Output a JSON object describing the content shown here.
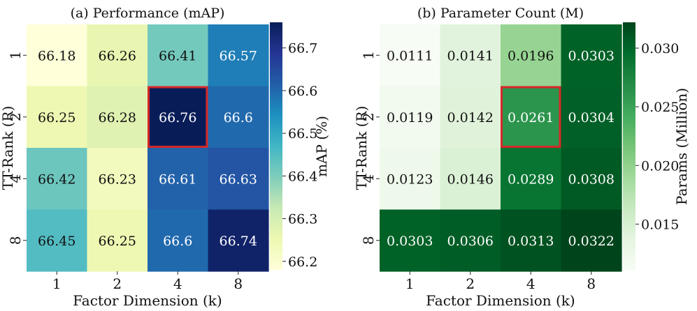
{
  "chart_data": [
    {
      "type": "heatmap",
      "title": "(a) Performance (mAP)",
      "xlabel": "Factor Dimension (k)",
      "ylabel": "TT-Rank (R)",
      "x_categories": [
        "1",
        "2",
        "4",
        "8"
      ],
      "y_categories": [
        "1",
        "2",
        "4",
        "8"
      ],
      "values": [
        [
          66.18,
          66.26,
          66.41,
          66.57
        ],
        [
          66.25,
          66.28,
          66.76,
          66.6
        ],
        [
          66.42,
          66.23,
          66.61,
          66.63
        ],
        [
          66.45,
          66.25,
          66.6,
          66.74
        ]
      ],
      "cell_labels": [
        [
          "66.18",
          "66.26",
          "66.41",
          "66.57"
        ],
        [
          "66.25",
          "66.28",
          "66.76",
          "66.6"
        ],
        [
          "66.42",
          "66.23",
          "66.61",
          "66.63"
        ],
        [
          "66.45",
          "66.25",
          "66.6",
          "66.74"
        ]
      ],
      "highlight": {
        "row": 1,
        "col": 2,
        "color": "#d62728"
      },
      "colormap": "YlGnBu",
      "colorbar": {
        "label": "mAP (%)",
        "range": [
          66.18,
          66.76
        ],
        "ticks": [
          66.2,
          66.3,
          66.4,
          66.5,
          66.6,
          66.7
        ],
        "tick_labels": [
          "66.2",
          "66.3",
          "66.4",
          "66.5",
          "66.6",
          "66.7"
        ]
      }
    },
    {
      "type": "heatmap",
      "title": "(b) Parameter Count (M)",
      "xlabel": "Factor Dimension (k)",
      "ylabel": "TT-Rank (R)",
      "x_categories": [
        "1",
        "2",
        "4",
        "8"
      ],
      "y_categories": [
        "1",
        "2",
        "4",
        "8"
      ],
      "values": [
        [
          0.0111,
          0.0141,
          0.0196,
          0.0303
        ],
        [
          0.0119,
          0.0142,
          0.0261,
          0.0304
        ],
        [
          0.0123,
          0.0146,
          0.0289,
          0.0308
        ],
        [
          0.0303,
          0.0306,
          0.0313,
          0.0322
        ]
      ],
      "cell_labels": [
        [
          "0.0111",
          "0.0141",
          "0.0196",
          "0.0303"
        ],
        [
          "0.0119",
          "0.0142",
          "0.0261",
          "0.0304"
        ],
        [
          "0.0123",
          "0.0146",
          "0.0289",
          "0.0308"
        ],
        [
          "0.0303",
          "0.0306",
          "0.0313",
          "0.0322"
        ]
      ],
      "highlight": {
        "row": 1,
        "col": 2,
        "color": "#d62728"
      },
      "colormap": "Greens",
      "colorbar": {
        "label": "Params (Million)",
        "range": [
          0.0111,
          0.0322
        ],
        "ticks": [
          0.015,
          0.02,
          0.025,
          0.03
        ],
        "tick_labels": [
          "0.015",
          "0.020",
          "0.025",
          "0.030"
        ]
      }
    }
  ]
}
